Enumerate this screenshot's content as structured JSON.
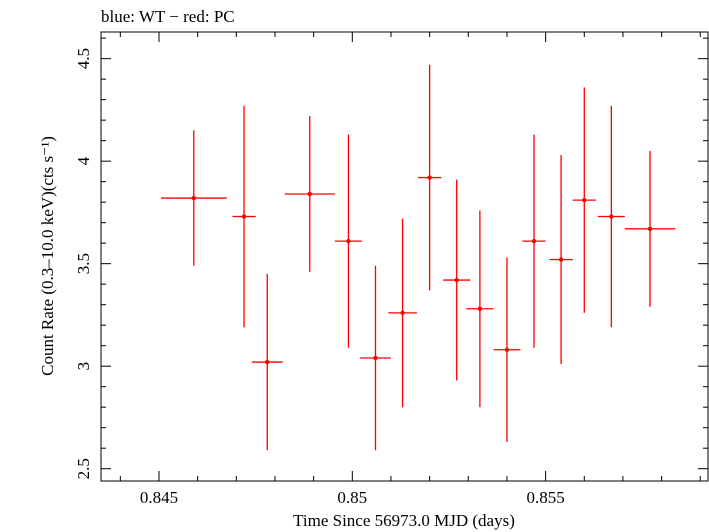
{
  "chart_data": {
    "type": "scatter",
    "title": "blue: WT − red: PC",
    "xlabel": "Time Since 56973.0 MJD (days)",
    "ylabel": "Count Rate (0.3–10.0 keV)(cts s⁻¹)",
    "xlim": [
      0.8435,
      0.8592
    ],
    "ylim": [
      2.44,
      4.63
    ],
    "xticks": [
      0.845,
      0.85,
      0.855
    ],
    "xtick_labels": [
      "0.845",
      "0.85",
      "0.855"
    ],
    "yticks": [
      2.5,
      3,
      3.5,
      4,
      4.5
    ],
    "ytick_labels": [
      "2.5",
      "3",
      "3.5",
      "4",
      "4.5"
    ],
    "grid": false,
    "series": [
      {
        "color": "#ff0000",
        "points": [
          {
            "x": 0.8459,
            "xerr": 0.00085,
            "y": 3.82,
            "yerr_lo": 0.33,
            "yerr_hi": 0.33
          },
          {
            "x": 0.8472,
            "xerr": 0.0003,
            "y": 3.73,
            "yerr_lo": 0.54,
            "yerr_hi": 0.54
          },
          {
            "x": 0.8478,
            "xerr": 0.0004,
            "y": 3.02,
            "yerr_lo": 0.43,
            "yerr_hi": 0.43
          },
          {
            "x": 0.8489,
            "xerr": 0.00065,
            "y": 3.84,
            "yerr_lo": 0.38,
            "yerr_hi": 0.38
          },
          {
            "x": 0.8499,
            "xerr": 0.00035,
            "y": 3.61,
            "yerr_lo": 0.52,
            "yerr_hi": 0.52
          },
          {
            "x": 0.8506,
            "xerr": 0.0004,
            "y": 3.04,
            "yerr_lo": 0.45,
            "yerr_hi": 0.45
          },
          {
            "x": 0.8513,
            "xerr": 0.00037,
            "y": 3.26,
            "yerr_lo": 0.46,
            "yerr_hi": 0.46
          },
          {
            "x": 0.852,
            "xerr": 0.0003,
            "y": 3.92,
            "yerr_lo": 0.55,
            "yerr_hi": 0.55
          },
          {
            "x": 0.8527,
            "xerr": 0.00035,
            "y": 3.42,
            "yerr_lo": 0.49,
            "yerr_hi": 0.49
          },
          {
            "x": 0.8533,
            "xerr": 0.00035,
            "y": 3.28,
            "yerr_lo": 0.48,
            "yerr_hi": 0.48
          },
          {
            "x": 0.854,
            "xerr": 0.00035,
            "y": 3.08,
            "yerr_lo": 0.45,
            "yerr_hi": 0.45
          },
          {
            "x": 0.8547,
            "xerr": 0.0003,
            "y": 3.61,
            "yerr_lo": 0.52,
            "yerr_hi": 0.52
          },
          {
            "x": 0.8554,
            "xerr": 0.0003,
            "y": 3.52,
            "yerr_lo": 0.51,
            "yerr_hi": 0.51
          },
          {
            "x": 0.856,
            "xerr": 0.0003,
            "y": 3.81,
            "yerr_lo": 0.55,
            "yerr_hi": 0.55
          },
          {
            "x": 0.8567,
            "xerr": 0.00035,
            "y": 3.73,
            "yerr_lo": 0.54,
            "yerr_hi": 0.54
          },
          {
            "x": 0.8577,
            "xerr": 0.00065,
            "y": 3.67,
            "yerr_lo": 0.38,
            "yerr_hi": 0.38
          }
        ]
      }
    ]
  }
}
